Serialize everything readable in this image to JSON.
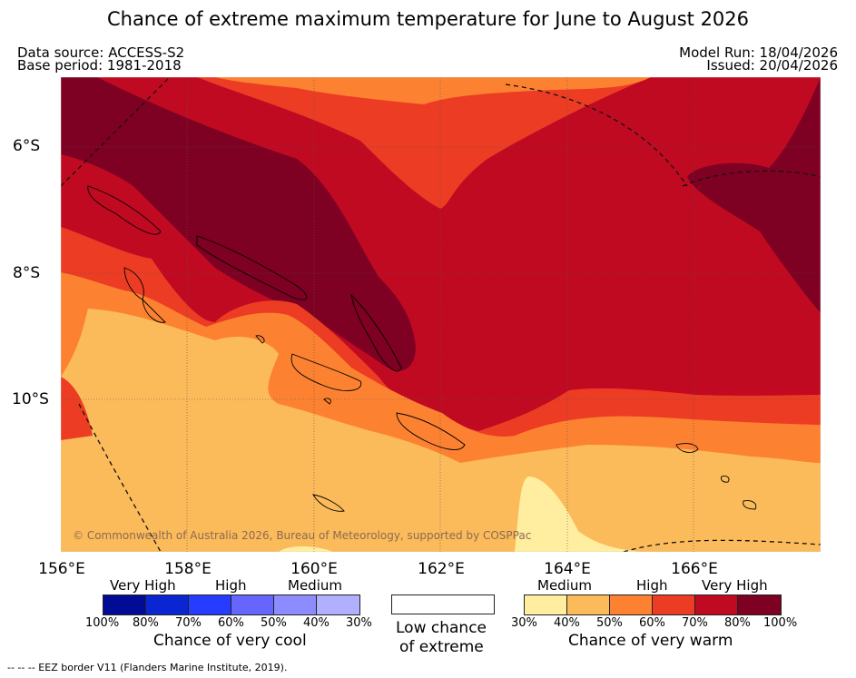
{
  "title": "Chance of extreme maximum temperature for June to August 2026",
  "header": {
    "data_source": "Data source: ACCESS-S2",
    "base_period": "Base period: 1981-2018",
    "model_run": "Model Run: 18/04/2026",
    "issued": "Issued: 20/04/2026"
  },
  "axes": {
    "longitude_labels": [
      "156°E",
      "158°E",
      "160°E",
      "162°E",
      "164°E",
      "166°E"
    ],
    "latitude_labels": [
      "6°S",
      "8°S",
      "10°S"
    ]
  },
  "copyright": "© Commonwealth of Australia 2026, Bureau of Meteorology, supported by COSPPac",
  "legend": {
    "cool": {
      "categories": [
        "Very High",
        "High",
        "Medium"
      ],
      "percent_labels": [
        "100%",
        "80%",
        "70%",
        "60%",
        "50%",
        "40%",
        "30%"
      ],
      "colors": [
        "#000c96",
        "#0a26d2",
        "#263cff",
        "#6666ff",
        "#8c8cff",
        "#b0b0ff"
      ],
      "caption": "Chance of very cool"
    },
    "low": {
      "caption_line1": "Low chance",
      "caption_line2": "of extreme",
      "color": "#ffffff"
    },
    "warm": {
      "categories": [
        "Medium",
        "High",
        "Very High"
      ],
      "percent_labels": [
        "30%",
        "40%",
        "50%",
        "60%",
        "70%",
        "80%",
        "100%"
      ],
      "colors": [
        "#ffeea0",
        "#fcbb5a",
        "#fc8232",
        "#ec3c24",
        "#c00a22",
        "#7e0022"
      ],
      "caption": "Chance of very warm"
    }
  },
  "footer": "--  --  -- EEZ border V11 (Flanders Marine Institute, 2019)."
}
